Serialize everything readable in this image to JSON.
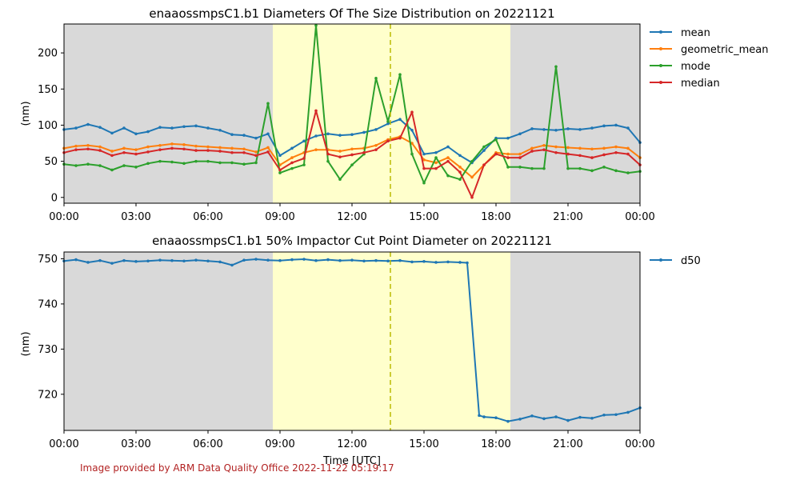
{
  "colors": {
    "night_band": "#d9d9d9",
    "day_band": "#ffffcc",
    "noon_line": "#bbbb00",
    "footer": "#b22222"
  },
  "shading": {
    "night_until_hour": 8.7,
    "day_until_hour": 18.6,
    "noon_hour": 13.6
  },
  "x_ticks": [
    "00:00",
    "03:00",
    "06:00",
    "09:00",
    "12:00",
    "15:00",
    "18:00",
    "21:00",
    "00:00"
  ],
  "footer": "Image provided by ARM Data Quality Office 2022-11-22 05:19:17",
  "chart_data": [
    {
      "type": "line",
      "title": "enaaossmpsC1.b1 Diameters Of The Size Distribution on 20221121",
      "xlabel": "",
      "ylabel": "(nm)",
      "xlim": [
        0,
        24
      ],
      "ylim": [
        -8,
        240
      ],
      "yticks": [
        0,
        50,
        100,
        150,
        200
      ],
      "legend_position": "outside-right",
      "x": [
        0,
        0.5,
        1,
        1.5,
        2,
        2.5,
        3,
        3.5,
        4,
        4.5,
        5,
        5.5,
        6,
        6.5,
        7,
        7.5,
        8,
        8.5,
        9,
        9.5,
        10,
        10.5,
        11,
        11.5,
        12,
        12.5,
        13,
        13.5,
        14,
        14.5,
        15,
        15.5,
        16,
        16.5,
        17,
        17.5,
        18,
        18.5,
        19,
        19.5,
        20,
        20.5,
        21,
        21.5,
        22,
        22.5,
        23,
        23.5,
        24
      ],
      "series": [
        {
          "name": "mean",
          "color": "#1f77b4",
          "values": [
            94,
            96,
            101,
            97,
            89,
            96,
            88,
            91,
            97,
            96,
            98,
            99,
            96,
            93,
            87,
            86,
            82,
            88,
            58,
            68,
            78,
            85,
            88,
            86,
            87,
            90,
            94,
            102,
            108,
            93,
            60,
            62,
            70,
            58,
            48,
            65,
            82,
            82,
            88,
            95,
            94,
            93,
            95,
            94,
            96,
            99,
            100,
            96,
            76
          ]
        },
        {
          "name": "geometric_mean",
          "color": "#ff7f0e",
          "values": [
            68,
            71,
            72,
            70,
            64,
            68,
            66,
            70,
            72,
            74,
            73,
            71,
            70,
            69,
            68,
            67,
            63,
            69,
            45,
            55,
            62,
            66,
            66,
            64,
            67,
            68,
            72,
            80,
            84,
            75,
            52,
            48,
            55,
            42,
            28,
            45,
            62,
            60,
            60,
            68,
            72,
            70,
            69,
            68,
            67,
            68,
            70,
            68,
            55
          ]
        },
        {
          "name": "mode",
          "color": "#2ca02c",
          "values": [
            46,
            44,
            46,
            44,
            38,
            44,
            42,
            47,
            50,
            49,
            47,
            50,
            50,
            48,
            48,
            46,
            48,
            130,
            34,
            40,
            45,
            238,
            50,
            25,
            45,
            60,
            165,
            105,
            170,
            60,
            20,
            55,
            30,
            25,
            50,
            70,
            80,
            42,
            42,
            40,
            40,
            181,
            40,
            40,
            37,
            42,
            37,
            34,
            36
          ]
        },
        {
          "name": "median",
          "color": "#d62728",
          "values": [
            62,
            66,
            67,
            65,
            58,
            62,
            60,
            63,
            66,
            68,
            67,
            65,
            65,
            64,
            62,
            62,
            58,
            63,
            38,
            48,
            54,
            120,
            60,
            56,
            59,
            62,
            66,
            78,
            82,
            118,
            40,
            40,
            50,
            35,
            0,
            45,
            60,
            55,
            55,
            64,
            66,
            62,
            60,
            58,
            55,
            59,
            62,
            60,
            45
          ]
        }
      ]
    },
    {
      "type": "line",
      "title": "enaaossmpsC1.b1 50% Impactor Cut Point Diameter on 20221121",
      "xlabel": "Time [UTC]",
      "ylabel": "(nm)",
      "xlim": [
        0,
        24
      ],
      "ylim": [
        712,
        751.5
      ],
      "yticks": [
        720,
        730,
        740,
        750
      ],
      "legend_position": "outside-right",
      "x": [
        0,
        0.5,
        1,
        1.5,
        2,
        2.5,
        3,
        3.5,
        4,
        4.5,
        5,
        5.5,
        6,
        6.5,
        7,
        7.5,
        8,
        8.5,
        9,
        9.5,
        10,
        10.5,
        11,
        11.5,
        12,
        12.5,
        13,
        13.5,
        14,
        14.5,
        15,
        15.5,
        16,
        16.5,
        16.8,
        17.3,
        17.5,
        18,
        18.5,
        19,
        19.5,
        20,
        20.5,
        21,
        21.5,
        22,
        22.5,
        23,
        23.5,
        24
      ],
      "series": [
        {
          "name": "d50",
          "color": "#1f77b4",
          "values": [
            749.5,
            749.8,
            749.2,
            749.6,
            749.0,
            749.6,
            749.4,
            749.5,
            749.7,
            749.6,
            749.5,
            749.7,
            749.5,
            749.3,
            748.6,
            749.7,
            749.9,
            749.7,
            749.6,
            749.8,
            749.9,
            749.6,
            749.8,
            749.6,
            749.7,
            749.5,
            749.6,
            749.5,
            749.6,
            749.3,
            749.4,
            749.2,
            749.3,
            749.2,
            749.1,
            715.3,
            715.0,
            714.8,
            714.0,
            714.5,
            715.2,
            714.6,
            715.0,
            714.2,
            714.9,
            714.7,
            715.4,
            715.5,
            716.0,
            717.0
          ]
        }
      ]
    }
  ]
}
